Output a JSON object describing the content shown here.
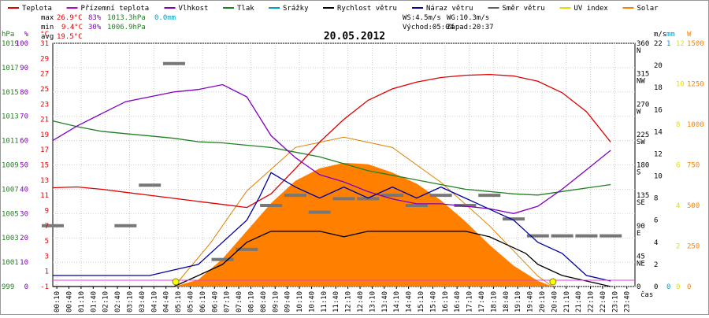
{
  "chart_data": {
    "type": "line",
    "title": "20.05.2012",
    "xlabel": "čas",
    "x_ticks": [
      "00:10",
      "00:40",
      "01:10",
      "01:40",
      "02:10",
      "02:40",
      "03:10",
      "03:40",
      "04:10",
      "04:40",
      "05:10",
      "05:40",
      "06:10",
      "06:40",
      "07:10",
      "07:40",
      "08:10",
      "08:40",
      "09:10",
      "09:40",
      "10:10",
      "10:40",
      "11:10",
      "11:40",
      "12:10",
      "12:40",
      "13:10",
      "13:40",
      "14:10",
      "14:40",
      "15:10",
      "15:40",
      "16:10",
      "16:40",
      "17:10",
      "17:40",
      "18:10",
      "18:40",
      "19:10",
      "19:40",
      "20:10",
      "20:40",
      "21:10",
      "21:40",
      "22:10",
      "22:40",
      "23:10",
      "23:40"
    ],
    "legend": [
      {
        "name": "Teplota",
        "color": "#e00000"
      },
      {
        "name": "Přízemní teplota",
        "color": "#c000c0"
      },
      {
        "name": "Vlhkost",
        "color": "#8000c0"
      },
      {
        "name": "Tlak",
        "color": "#208020"
      },
      {
        "name": "Srážky",
        "color": "#00a0c0"
      },
      {
        "name": "Rychlost větru",
        "color": "#000000"
      },
      {
        "name": "Náraz větru",
        "color": "#0000a0"
      },
      {
        "name": "Směr větru",
        "color": "#606060"
      },
      {
        "name": "UV index",
        "color": "#e0e000"
      },
      {
        "name": "Solar",
        "color": "#ff8000"
      }
    ],
    "stats": {
      "max_label": "max",
      "max_temp": "26.9°C",
      "max_hum": "83%",
      "max_press": "1013.3hPa",
      "rain": "0.0mm",
      "min_label": "min",
      "min_temp": "9.4°C",
      "min_hum": "30%",
      "min_press": "1006.9hPa",
      "avg_label": "avg",
      "avg_temp": "19.5°C",
      "ws": "WS:4.5m/s",
      "wg": "WG:10.3m/s",
      "sunrise": "Východ:05:04",
      "sunset": "Západ:20:37"
    },
    "axes": {
      "hPa": {
        "unit": "hPa",
        "color": "#208020",
        "ticks": [
          "1019",
          "1017",
          "1015",
          "1013",
          "1011",
          "1009",
          "1007",
          "1005",
          "1003",
          "1001",
          "999"
        ]
      },
      "pct": {
        "unit": "%",
        "color": "#8000c0",
        "ticks": [
          "100",
          "90",
          "80",
          "70",
          "60",
          "50",
          "40",
          "30",
          "20",
          "10",
          "0"
        ]
      },
      "degC": {
        "unit": "°C",
        "color": "#e00000",
        "ticks": [
          "31",
          "27",
          "23",
          "19",
          "15",
          "11",
          "7",
          "3",
          "-1"
        ]
      },
      "degC_fine": {
        "color": "#e00000",
        "ticks": [
          "29",
          "25",
          "21",
          "17",
          "13",
          "9",
          "5",
          "1"
        ]
      },
      "dir": {
        "color": "#000000",
        "ticks": [
          "360\nN",
          "315\nNW",
          "270\nW",
          "225\nSW",
          "180\nS",
          "135\nSE",
          "90\nE",
          "45\nNE",
          "0"
        ]
      },
      "ms": {
        "unit": "m/s",
        "color": "#000000",
        "ticks": [
          "22",
          "20",
          "18",
          "16",
          "14",
          "12",
          "10",
          "8",
          "6",
          "4",
          "2",
          "0"
        ]
      },
      "mm": {
        "unit": "mm",
        "color": "#00a0c0",
        "ticks": [
          "1",
          "0"
        ]
      },
      "W": {
        "unit": "W",
        "color": "#ff8000",
        "ticks": [
          "1500",
          "1250",
          "1000",
          "750",
          "500",
          "250",
          "0"
        ]
      },
      "uv": {
        "color": "#e0e000",
        "ticks": [
          "12",
          "10",
          "8",
          "6",
          "4",
          "2",
          "0"
        ]
      }
    },
    "series": {
      "temperature_c": [
        [
          0,
          12
        ],
        [
          1,
          12.1
        ],
        [
          2,
          11.8
        ],
        [
          3,
          11.4
        ],
        [
          4,
          11
        ],
        [
          5,
          10.6
        ],
        [
          6,
          10.2
        ],
        [
          7,
          9.8
        ],
        [
          8,
          9.4
        ],
        [
          9,
          11.2
        ],
        [
          10,
          14.5
        ],
        [
          11,
          18
        ],
        [
          12,
          21
        ],
        [
          13,
          23.5
        ],
        [
          14,
          25
        ],
        [
          15,
          25.9
        ],
        [
          16,
          26.5
        ],
        [
          17,
          26.8
        ],
        [
          18,
          26.9
        ],
        [
          19,
          26.7
        ],
        [
          20,
          26
        ],
        [
          21,
          24.5
        ],
        [
          22,
          22
        ],
        [
          23,
          18
        ]
      ],
      "humidity_pct": [
        [
          0,
          60
        ],
        [
          1,
          66
        ],
        [
          2,
          71
        ],
        [
          3,
          76
        ],
        [
          4,
          78
        ],
        [
          5,
          80
        ],
        [
          6,
          81
        ],
        [
          7,
          83
        ],
        [
          8,
          78
        ],
        [
          9,
          62
        ],
        [
          10,
          53
        ],
        [
          11,
          46
        ],
        [
          12,
          43
        ],
        [
          13,
          39
        ],
        [
          14,
          36
        ],
        [
          15,
          34
        ],
        [
          16,
          34
        ],
        [
          17,
          33
        ],
        [
          18,
          32
        ],
        [
          19,
          30
        ],
        [
          20,
          33
        ],
        [
          21,
          40
        ],
        [
          22,
          48
        ],
        [
          23,
          56
        ]
      ],
      "pressure_hpa": [
        [
          0,
          1013.3
        ],
        [
          1,
          1012.8
        ],
        [
          2,
          1012.4
        ],
        [
          3,
          1012.2
        ],
        [
          4,
          1012
        ],
        [
          5,
          1011.8
        ],
        [
          6,
          1011.5
        ],
        [
          7,
          1011.4
        ],
        [
          8,
          1011.2
        ],
        [
          9,
          1011
        ],
        [
          10,
          1010.6
        ],
        [
          11,
          1010.2
        ],
        [
          12,
          1009.6
        ],
        [
          13,
          1009
        ],
        [
          14,
          1008.6
        ],
        [
          15,
          1008.2
        ],
        [
          16,
          1007.8
        ],
        [
          17,
          1007.4
        ],
        [
          18,
          1007.2
        ],
        [
          19,
          1007
        ],
        [
          20,
          1006.9
        ],
        [
          21,
          1007.2
        ],
        [
          22,
          1007.5
        ],
        [
          23,
          1007.8
        ]
      ],
      "wind_speed_ms": [
        [
          0,
          0
        ],
        [
          5,
          0
        ],
        [
          5.5,
          0.5
        ],
        [
          6,
          1
        ],
        [
          7,
          2
        ],
        [
          7.5,
          3
        ],
        [
          8,
          4
        ],
        [
          9,
          5
        ],
        [
          10,
          5
        ],
        [
          11,
          5
        ],
        [
          12,
          4.5
        ],
        [
          13,
          5
        ],
        [
          14,
          5
        ],
        [
          15,
          5
        ],
        [
          16,
          5
        ],
        [
          17,
          5
        ],
        [
          18,
          4.5
        ],
        [
          19,
          3.5
        ],
        [
          19.5,
          3
        ],
        [
          20,
          2
        ],
        [
          21,
          1
        ],
        [
          22,
          0.5
        ],
        [
          23,
          0
        ]
      ],
      "wind_gust_ms": [
        [
          0,
          1
        ],
        [
          2,
          1
        ],
        [
          4,
          1
        ],
        [
          5,
          1.5
        ],
        [
          6,
          2
        ],
        [
          7,
          4
        ],
        [
          8,
          6
        ],
        [
          8.5,
          8
        ],
        [
          9,
          10.3
        ],
        [
          10,
          9
        ],
        [
          11,
          8
        ],
        [
          12,
          9
        ],
        [
          13,
          8
        ],
        [
          14,
          9
        ],
        [
          15,
          8
        ],
        [
          16,
          9
        ],
        [
          17,
          8
        ],
        [
          18,
          7
        ],
        [
          19,
          6
        ],
        [
          19.5,
          5
        ],
        [
          20,
          4
        ],
        [
          21,
          3
        ],
        [
          22,
          1
        ],
        [
          23,
          0.5
        ]
      ],
      "wind_dir_deg": [
        [
          0,
          90
        ],
        [
          3,
          90
        ],
        [
          4,
          150
        ],
        [
          5,
          330
        ],
        [
          7,
          40
        ],
        [
          8,
          55
        ],
        [
          9,
          120
        ],
        [
          10,
          135
        ],
        [
          11,
          110
        ],
        [
          12,
          130
        ],
        [
          13,
          130
        ],
        [
          14,
          135
        ],
        [
          15,
          120
        ],
        [
          16,
          135
        ],
        [
          17,
          120
        ],
        [
          18,
          135
        ],
        [
          19,
          100
        ],
        [
          20,
          75
        ],
        [
          21,
          75
        ],
        [
          22,
          75
        ],
        [
          23,
          75
        ]
      ],
      "solar_w": [
        [
          5,
          0
        ],
        [
          6,
          50
        ],
        [
          7,
          200
        ],
        [
          8,
          400
        ],
        [
          9,
          600
        ],
        [
          10,
          760
        ],
        [
          11,
          850
        ],
        [
          12,
          890
        ],
        [
          13,
          880
        ],
        [
          14,
          820
        ],
        [
          15,
          740
        ],
        [
          16,
          620
        ],
        [
          17,
          470
        ],
        [
          18,
          300
        ],
        [
          19,
          150
        ],
        [
          20,
          40
        ],
        [
          20.6,
          0
        ]
      ],
      "uv_theoretical": [
        [
          5,
          0
        ],
        [
          6.5,
          2.5
        ],
        [
          8,
          5.5
        ],
        [
          10,
          8
        ],
        [
          12,
          8.6
        ],
        [
          14,
          8
        ],
        [
          16,
          6
        ],
        [
          18,
          3.5
        ],
        [
          20,
          0.6
        ],
        [
          20.6,
          0
        ]
      ],
      "sun_markers_h": [
        5.07,
        20.62
      ]
    }
  }
}
